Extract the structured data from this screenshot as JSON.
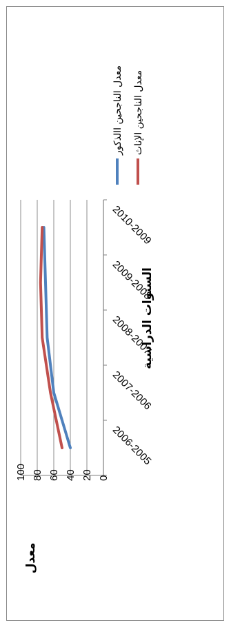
{
  "chart_data": {
    "type": "line",
    "orientation": "rotated-90-clockwise",
    "categories": [
      "2006-2005",
      "2007-2006",
      "2008-2007",
      "2009-2008",
      "2010-2009"
    ],
    "series": [
      {
        "name": "معدل الناجحين االذكور",
        "color": "#4f81bd",
        "values": [
          40,
          60,
          68,
          70,
          72
        ]
      },
      {
        "name": "معدل الناجحين الإناث",
        "color": "#c0504d",
        "values": [
          50,
          64,
          74,
          76,
          74
        ]
      }
    ],
    "y_ticks": [
      "0",
      "20",
      "40",
      "60",
      "80",
      "100"
    ],
    "ylim": [
      0,
      100
    ],
    "xlabel": "السنوات الدراسية",
    "ylabel": "معدل",
    "grid": true,
    "legend_position": "top-right"
  }
}
